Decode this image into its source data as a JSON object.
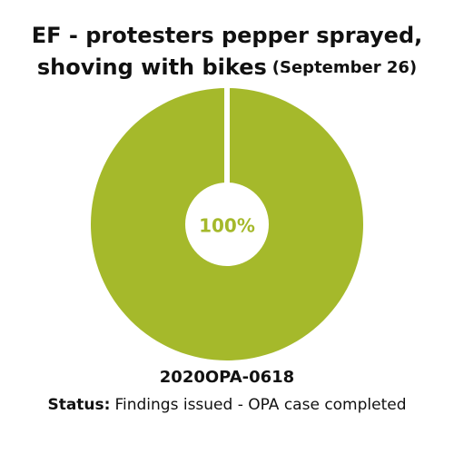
{
  "chart_data": {
    "type": "pie",
    "title_lines": [
      "EF - protesters pepper sprayed,",
      "shoving with bikes"
    ],
    "date": "(September 26)",
    "values": [
      100
    ],
    "value_labels": [
      "100%"
    ],
    "color": "#a5b92b"
  },
  "footer": {
    "case_id": "2020OPA-0618",
    "status_label": "Status:",
    "status_text": "Findings issued - OPA case completed"
  }
}
